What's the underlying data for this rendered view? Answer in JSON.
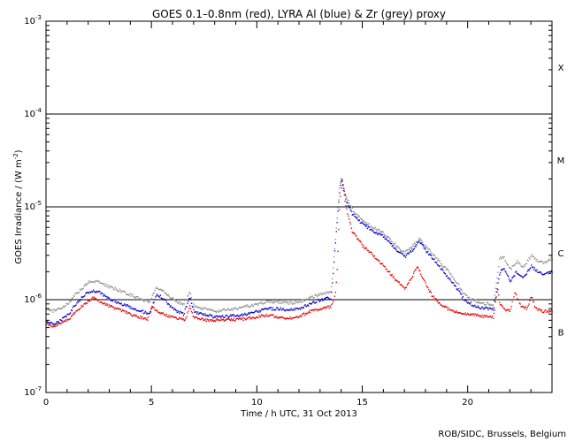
{
  "chart_data": {
    "type": "line",
    "title": "GOES 0.1–0.8nm (red), LYRA Al (blue) & Zr (grey) proxy",
    "xlabel": "Time / h UTC, 31 Oct 2013",
    "ylabel": "GOES Irradiance / (W m",
    "ylabel_sup": "-2",
    "ylabel_close": ")",
    "credit": "ROB/SIDC, Brussels, Belgium",
    "xlim": [
      0,
      24
    ],
    "ylim": [
      1e-07,
      0.001
    ],
    "yscale": "log",
    "x_ticks": [
      {
        "value": 0,
        "label": "0"
      },
      {
        "value": 5,
        "label": "5"
      },
      {
        "value": 10,
        "label": "10"
      },
      {
        "value": 15,
        "label": "15"
      },
      {
        "value": 20,
        "label": "20"
      }
    ],
    "y_ticks": [
      {
        "value": 1e-07,
        "base": "10",
        "exp": "-7"
      },
      {
        "value": 1e-06,
        "base": "10",
        "exp": "-6"
      },
      {
        "value": 1e-05,
        "base": "10",
        "exp": "-5"
      },
      {
        "value": 0.0001,
        "base": "10",
        "exp": "-4"
      },
      {
        "value": 0.001,
        "base": "10",
        "exp": "-3"
      }
    ],
    "class_lines": [
      1e-06,
      1e-05,
      0.0001
    ],
    "flare_classes": [
      {
        "label": "X",
        "value": 0.00032
      },
      {
        "label": "M",
        "value": 3.2e-05
      },
      {
        "label": "C",
        "value": 3.2e-06
      },
      {
        "label": "B",
        "value": 4.5e-07
      }
    ],
    "series": [
      {
        "color": "#e00000",
        "x": [
          0,
          0.3,
          0.6,
          1,
          1.4,
          1.8,
          2.2,
          2.6,
          3,
          3.5,
          4,
          4.4,
          4.8,
          5.0,
          5.3,
          5.7,
          6.0,
          6.3,
          6.6,
          6.8,
          7.0,
          7.3,
          7.6,
          8.0,
          8.5,
          9.0,
          9.5,
          10.0,
          10.5,
          11.0,
          11.5,
          12.0,
          12.5,
          13.0,
          13.5,
          13.7,
          13.8,
          13.9,
          14.0,
          14.2,
          14.5,
          15.0,
          15.5,
          16.0,
          16.5,
          17.0,
          17.3,
          17.6,
          17.9,
          18.3,
          18.8,
          19.3,
          19.8,
          20.3,
          20.8,
          21.2,
          21.4,
          21.5,
          21.7,
          22.0,
          22.2,
          22.5,
          22.8,
          23.0,
          23.2,
          23.5,
          24.0
        ],
        "y": [
          5.5e-07,
          5.2e-07,
          5.5e-07,
          6e-07,
          7.5e-07,
          9e-07,
          1.05e-06,
          9.5e-07,
          8.5e-07,
          7.8e-07,
          7e-07,
          6.5e-07,
          6.2e-07,
          8.5e-07,
          7.5e-07,
          6.8e-07,
          6.5e-07,
          6.3e-07,
          6.1e-07,
          8.5e-07,
          6.3e-07,
          6.2e-07,
          6e-07,
          6e-07,
          6.1e-07,
          6.1e-07,
          6.2e-07,
          6.6e-07,
          6.8e-07,
          6.5e-07,
          6.3e-07,
          6.6e-07,
          7.5e-07,
          8e-07,
          8.5e-07,
          1.1e-06,
          2.5e-06,
          1e-05,
          2e-05,
          1e-05,
          5.5e-06,
          3.8e-06,
          3e-06,
          2.3e-06,
          1.7e-06,
          1.3e-06,
          1.7e-06,
          2.3e-06,
          1.6e-06,
          1.1e-06,
          8.5e-07,
          7.5e-07,
          7e-07,
          6.8e-07,
          6.6e-07,
          6.5e-07,
          1.3e-06,
          9e-07,
          8e-07,
          7.5e-07,
          1.2e-06,
          8.5e-07,
          8e-07,
          1.1e-06,
          8e-07,
          7.5e-07,
          7.5e-07
        ]
      },
      {
        "color": "#0000c8",
        "x": [
          0,
          0.3,
          0.6,
          1,
          1.4,
          1.8,
          2.1,
          2.5,
          2.9,
          3.3,
          3.7,
          4.1,
          4.5,
          4.9,
          5.2,
          5.5,
          5.9,
          6.2,
          6.5,
          6.8,
          7.0,
          7.3,
          7.7,
          8.0,
          8.5,
          9.0,
          9.5,
          10.0,
          10.5,
          11.0,
          11.5,
          12.0,
          12.5,
          13.0,
          13.5,
          13.9,
          14.0,
          14.2,
          14.5,
          15.0,
          15.5,
          16.0,
          16.5,
          17.0,
          17.4,
          17.7,
          18.0,
          18.5,
          19.0,
          19.5,
          19.8,
          20.2,
          20.6,
          21.0,
          21.2,
          21.5,
          21.7,
          22.0,
          22.3,
          22.6,
          23.0,
          23.3,
          23.6,
          24.0
        ],
        "y": [
          6e-07,
          5.4e-07,
          5.8e-07,
          6.8e-07,
          9e-07,
          1.12e-06,
          1.25e-06,
          1.2e-06,
          1.05e-06,
          9.5e-07,
          8.8e-07,
          8e-07,
          7.5e-07,
          7e-07,
          1.15e-06,
          1.05e-06,
          8.5e-07,
          7.5e-07,
          7e-07,
          1.05e-06,
          7.5e-07,
          7e-07,
          6.8e-07,
          6.5e-07,
          6.6e-07,
          6.8e-07,
          7e-07,
          7.5e-07,
          8e-07,
          8e-07,
          7.8e-07,
          8e-07,
          9e-07,
          1e-06,
          1.05e-06,
          1.5e-05,
          2e-05,
          1.2e-05,
          8.5e-06,
          6.5e-06,
          5.5e-06,
          4.8e-06,
          3.6e-06,
          2.9e-06,
          3.5e-06,
          4.3e-06,
          3.4e-06,
          2.5e-06,
          1.8e-06,
          1.3e-06,
          1e-06,
          8.8e-07,
          8.2e-07,
          8e-07,
          7.8e-07,
          2e-06,
          2.2e-06,
          1.6e-06,
          2e-06,
          1.7e-06,
          2.3e-06,
          2e-06,
          1.9e-06,
          2e-06
        ]
      },
      {
        "color": "#909090",
        "x": [
          0,
          0.3,
          0.6,
          1,
          1.4,
          1.8,
          2.1,
          2.5,
          2.9,
          3.3,
          3.7,
          4.1,
          4.5,
          4.9,
          5.2,
          5.5,
          5.9,
          6.2,
          6.5,
          6.8,
          7.0,
          7.3,
          7.7,
          8.0,
          8.5,
          9.0,
          9.5,
          10.0,
          10.5,
          11.0,
          11.5,
          12.0,
          12.5,
          13.0,
          13.5,
          13.9,
          14.0,
          14.2,
          14.5,
          15.0,
          15.5,
          16.0,
          16.5,
          17.0,
          17.4,
          17.7,
          18.0,
          18.5,
          19.0,
          19.5,
          19.8,
          20.2,
          20.6,
          21.0,
          21.2,
          21.5,
          21.7,
          22.0,
          22.3,
          22.6,
          23.0,
          23.3,
          23.6,
          24.0
        ],
        "y": [
          8e-07,
          7.5e-07,
          8e-07,
          9e-07,
          1.15e-06,
          1.4e-06,
          1.6e-06,
          1.55e-06,
          1.4e-06,
          1.3e-06,
          1.2e-06,
          1.1e-06,
          1e-06,
          9.5e-07,
          1.35e-06,
          1.25e-06,
          1.05e-06,
          9.5e-07,
          9e-07,
          1.2e-06,
          8.5e-07,
          8e-07,
          7.8e-07,
          7.5e-07,
          7.8e-07,
          8e-07,
          8.5e-07,
          9e-07,
          9.5e-07,
          9.5e-07,
          9.2e-07,
          9.5e-07,
          1.05e-06,
          1.15e-06,
          1.2e-06,
          1.6e-05,
          2.1e-05,
          1.3e-05,
          9.5e-06,
          7e-06,
          6e-06,
          5.2e-06,
          4e-06,
          3.2e-06,
          3.9e-06,
          4.5e-06,
          3.7e-06,
          2.8e-06,
          2.1e-06,
          1.5e-06,
          1.15e-06,
          1e-06,
          9.2e-07,
          9e-07,
          8.8e-07,
          2.8e-06,
          2.9e-06,
          2.1e-06,
          2.6e-06,
          2.2e-06,
          3e-06,
          2.6e-06,
          2.5e-06,
          2.8e-06
        ]
      }
    ]
  }
}
